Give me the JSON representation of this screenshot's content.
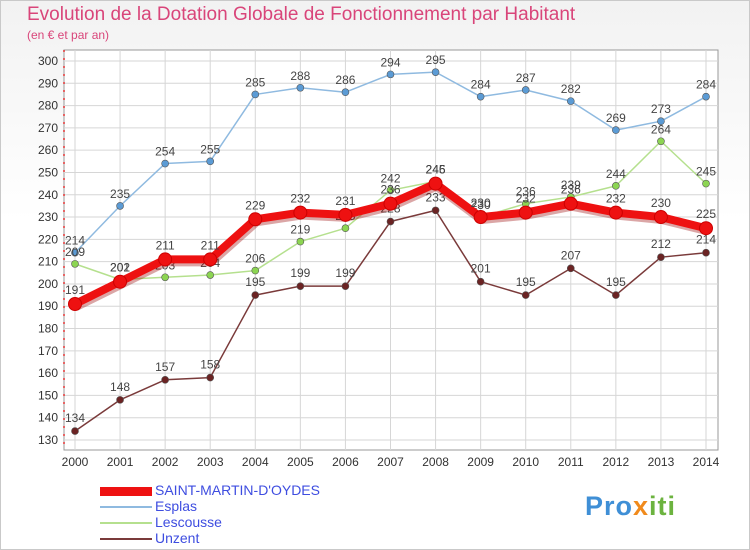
{
  "title": "Evolution de la Dotation Globale de Fonctionnement par Habitant",
  "subtitle": "(en € et par an)",
  "logo": {
    "part1": "Pro",
    "part2": "x",
    "part3": "iti"
  },
  "chart_data": {
    "type": "line",
    "x": [
      2000,
      2001,
      2002,
      2003,
      2004,
      2005,
      2006,
      2007,
      2008,
      2009,
      2010,
      2011,
      2012,
      2013,
      2014
    ],
    "ylim": [
      130,
      300
    ],
    "yticks": [
      130,
      140,
      150,
      160,
      170,
      180,
      190,
      200,
      210,
      220,
      230,
      240,
      250,
      260,
      270,
      280,
      290,
      300
    ],
    "grid": true,
    "legend_position": "bottom-left",
    "series": [
      {
        "name": "Esplas",
        "color": "#5b9bd5",
        "lineColor": "#8fbae0",
        "values": [
          214,
          235,
          254,
          255,
          285,
          288,
          286,
          294,
          295,
          284,
          287,
          282,
          269,
          273,
          284
        ]
      },
      {
        "name": "Lescousse",
        "color": "#8cd552",
        "lineColor": "#b5e08e",
        "values": [
          209,
          202,
          203,
          204,
          206,
          219,
          225,
          242,
          246,
          230,
          236,
          239,
          244,
          264,
          245
        ]
      },
      {
        "name": "Unzent",
        "color": "#6b2323",
        "lineColor": "#7a3a3a",
        "values": [
          134,
          148,
          157,
          158,
          195,
          199,
          199,
          228,
          233,
          201,
          195,
          207,
          195,
          212,
          214
        ]
      },
      {
        "name": "SAINT-MARTIN-D'OYDES",
        "color": "#ee1111",
        "lineColor": "#ee1111",
        "values": [
          191,
          201,
          211,
          211,
          229,
          232,
          231,
          236,
          245,
          230,
          232,
          236,
          232,
          230,
          225
        ]
      }
    ]
  }
}
